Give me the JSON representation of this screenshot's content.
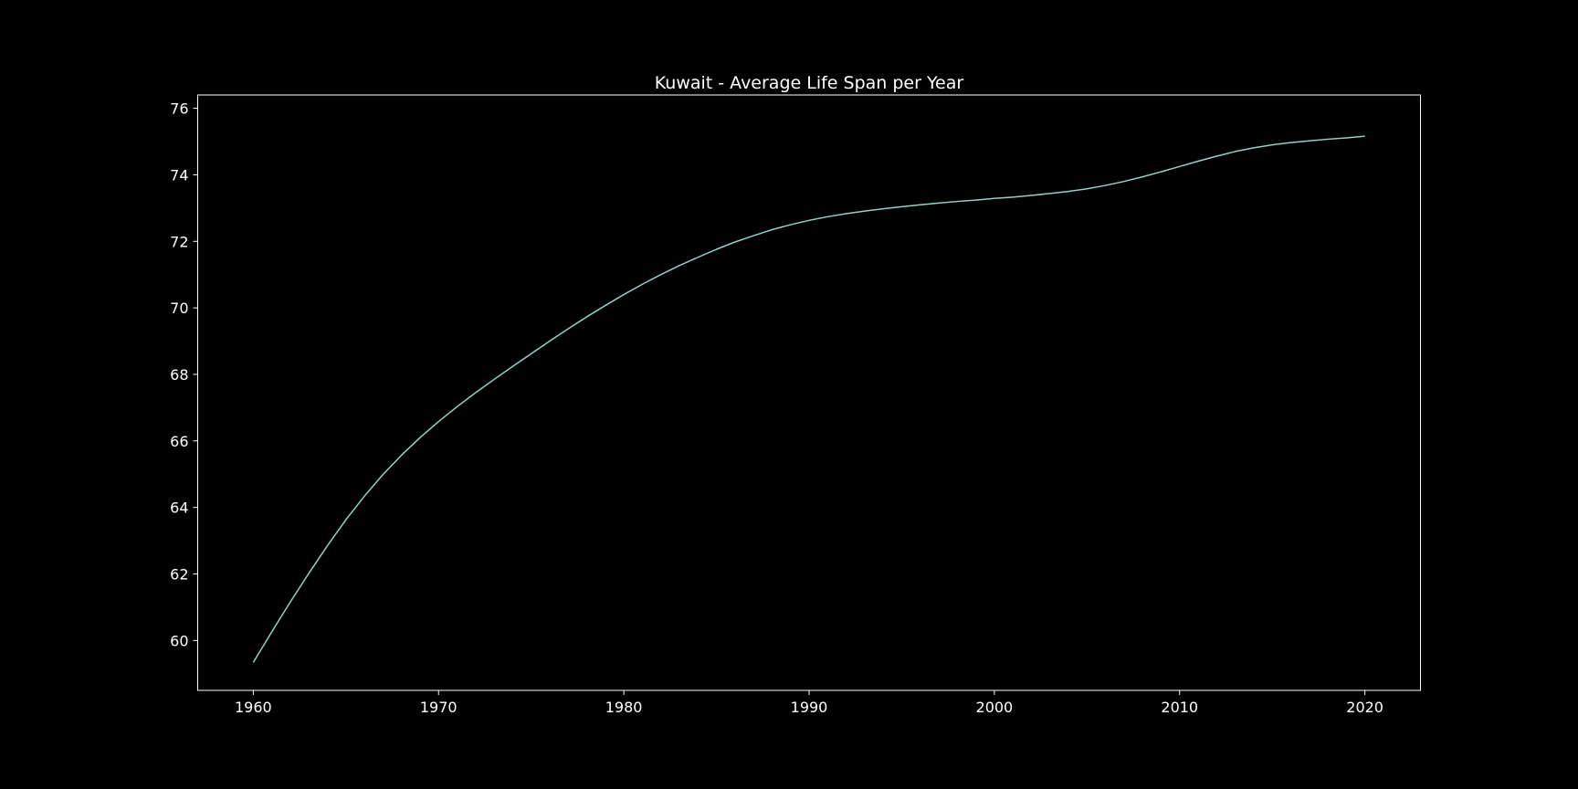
{
  "chart_data": {
    "type": "line",
    "title": "Kuwait - Average Life Span per Year",
    "xlabel": "",
    "ylabel": "",
    "xlim": [
      1957,
      2023
    ],
    "ylim": [
      58.5,
      76.4
    ],
    "xticks": [
      1960,
      1970,
      1980,
      1990,
      2000,
      2010,
      2020
    ],
    "yticks": [
      60,
      62,
      64,
      66,
      68,
      70,
      72,
      74,
      76
    ],
    "grid": false,
    "legend": "none",
    "colors": {
      "background": "#000000",
      "axes": "#ffffff",
      "line": "#8dd3c7",
      "text": "#ffffff"
    },
    "series": [
      {
        "x": [
          1960,
          1961,
          1962,
          1963,
          1964,
          1965,
          1966,
          1967,
          1968,
          1969,
          1970,
          1971,
          1972,
          1973,
          1974,
          1975,
          1976,
          1977,
          1978,
          1979,
          1980,
          1981,
          1982,
          1983,
          1984,
          1985,
          1986,
          1987,
          1988,
          1989,
          1990,
          1991,
          1992,
          1993,
          1994,
          1995,
          1996,
          1997,
          1998,
          1999,
          2000,
          2001,
          2002,
          2003,
          2004,
          2005,
          2006,
          2007,
          2008,
          2009,
          2010,
          2011,
          2012,
          2013,
          2014,
          2015,
          2016,
          2017,
          2018,
          2019,
          2020
        ],
        "values": [
          59.34,
          60.26,
          61.16,
          62.02,
          62.85,
          63.63,
          64.34,
          64.99,
          65.57,
          66.1,
          66.58,
          67.03,
          67.45,
          67.85,
          68.24,
          68.62,
          69.0,
          69.37,
          69.73,
          70.07,
          70.4,
          70.71,
          71.0,
          71.27,
          71.52,
          71.76,
          71.98,
          72.17,
          72.35,
          72.5,
          72.63,
          72.74,
          72.83,
          72.91,
          72.98,
          73.04,
          73.1,
          73.15,
          73.2,
          73.24,
          73.29,
          73.33,
          73.38,
          73.44,
          73.5,
          73.58,
          73.68,
          73.8,
          73.94,
          74.09,
          74.25,
          74.41,
          74.56,
          74.7,
          74.81,
          74.9,
          74.97,
          75.02,
          75.07,
          75.11,
          75.16
        ]
      }
    ]
  }
}
